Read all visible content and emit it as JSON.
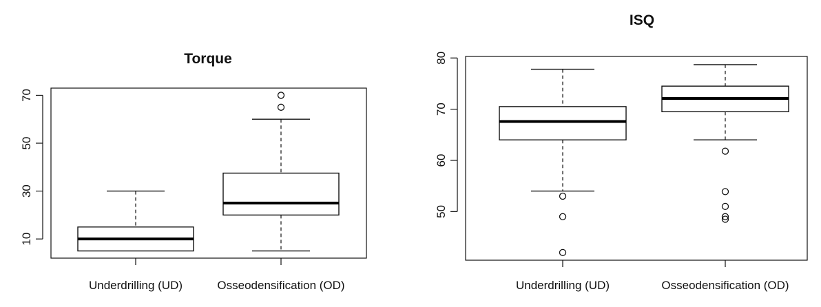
{
  "chart_data": [
    {
      "type": "box",
      "title": "Torque",
      "xlabel": "",
      "ylabel": "",
      "ylim": [
        2,
        73
      ],
      "yticks": [
        10,
        30,
        50,
        70
      ],
      "grid": false,
      "categories": [
        "Underdrilling (UD)",
        "Osseodensification (OD)"
      ],
      "boxes": [
        {
          "min": 5,
          "q1": 5,
          "median": 10,
          "q3": 15,
          "max": 30,
          "outliers": []
        },
        {
          "min": 5,
          "q1": 20,
          "median": 25,
          "q3": 37.5,
          "max": 60,
          "outliers": [
            65,
            70
          ]
        }
      ]
    },
    {
      "type": "box",
      "title": "ISQ",
      "xlabel": "",
      "ylabel": "",
      "ylim": [
        40.5,
        80.3
      ],
      "yticks": [
        50,
        60,
        70,
        80
      ],
      "grid": false,
      "categories": [
        "Underdrilling (UD)",
        "Osseodensification (OD)"
      ],
      "boxes": [
        {
          "min": 54,
          "q1": 64,
          "median": 67.6,
          "q3": 70.5,
          "max": 77.8,
          "outliers": [
            53,
            49,
            42
          ]
        },
        {
          "min": 64,
          "q1": 69.5,
          "median": 72.1,
          "q3": 74.5,
          "max": 78.7,
          "outliers": [
            61.8,
            53.9,
            51,
            49,
            48.5
          ]
        }
      ]
    }
  ]
}
